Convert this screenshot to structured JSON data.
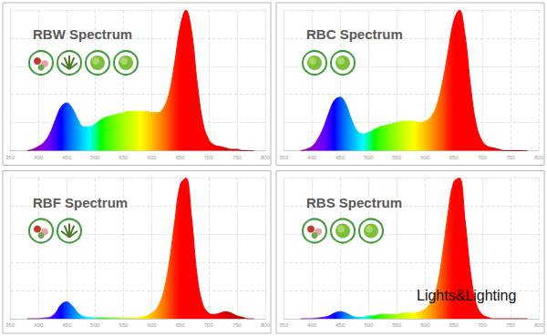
{
  "chart_data": [
    {
      "type": "line",
      "title": "RBW Spectrum",
      "x": [
        380,
        390,
        400,
        410,
        420,
        430,
        440,
        450,
        460,
        470,
        480,
        490,
        500,
        510,
        520,
        530,
        540,
        550,
        560,
        570,
        580,
        590,
        600,
        610,
        620,
        630,
        640,
        650,
        660,
        670,
        680,
        690,
        700,
        710,
        720,
        730,
        740,
        750,
        760,
        770,
        780
      ],
      "values": [
        0,
        1,
        3,
        6,
        12,
        22,
        31,
        34,
        30,
        22,
        17,
        17,
        19,
        22,
        24,
        25,
        26,
        27,
        28,
        28,
        28,
        28,
        27,
        27,
        30,
        40,
        62,
        88,
        100,
        85,
        48,
        20,
        8,
        4,
        3,
        2,
        1,
        1,
        0,
        0,
        0
      ],
      "xlim": [
        350,
        800
      ],
      "xticks": [
        350,
        400,
        450,
        500,
        550,
        600,
        650,
        700,
        750,
        800
      ],
      "ylim": [
        0,
        100
      ],
      "yticks": [
        0,
        20,
        40,
        60,
        80,
        100
      ],
      "grid": true,
      "tick_labels": "x"
    },
    {
      "type": "line",
      "title": "RBC Spectrum",
      "x": [
        380,
        390,
        400,
        410,
        420,
        430,
        440,
        450,
        460,
        470,
        480,
        490,
        500,
        510,
        520,
        530,
        540,
        550,
        560,
        570,
        580,
        590,
        600,
        610,
        620,
        630,
        640,
        650,
        660,
        670,
        680,
        690,
        700,
        710,
        720,
        730,
        740,
        750,
        760,
        770,
        780
      ],
      "values": [
        0,
        1,
        3,
        8,
        16,
        27,
        36,
        38,
        33,
        22,
        14,
        12,
        13,
        15,
        17,
        18,
        19,
        20,
        21,
        21,
        21,
        20,
        21,
        24,
        32,
        48,
        70,
        92,
        100,
        82,
        45,
        18,
        7,
        3,
        2,
        1,
        0,
        0,
        0,
        0,
        0
      ],
      "xlim": [
        350,
        800
      ],
      "xticks": [
        350,
        400,
        450,
        500,
        550,
        600,
        650,
        700,
        750,
        800
      ],
      "ylim": [
        0,
        100
      ],
      "yticks": [
        0,
        20,
        40,
        60,
        80,
        100
      ],
      "grid": true,
      "tick_labels": "x"
    },
    {
      "type": "line",
      "title": "RBF Spectrum",
      "x": [
        380,
        390,
        400,
        410,
        420,
        430,
        440,
        450,
        460,
        470,
        480,
        490,
        500,
        510,
        520,
        530,
        540,
        550,
        560,
        570,
        580,
        590,
        600,
        610,
        620,
        630,
        640,
        650,
        660,
        670,
        680,
        690,
        700,
        710,
        720,
        730,
        740,
        750,
        760,
        770,
        780
      ],
      "values": [
        0,
        0,
        0,
        0.5,
        1,
        4,
        10,
        12,
        9,
        4,
        1.5,
        1,
        0.5,
        0.5,
        0.5,
        0.5,
        0.5,
        0.5,
        0.5,
        0.5,
        1,
        2,
        4,
        8,
        18,
        38,
        68,
        95,
        100,
        72,
        30,
        10,
        4,
        3,
        4,
        5,
        4,
        2,
        1,
        0,
        0
      ],
      "xlim": [
        350,
        800
      ],
      "xticks": [
        350,
        400,
        450,
        500,
        550,
        600,
        650,
        700,
        750,
        800
      ],
      "ylim": [
        0,
        100
      ],
      "yticks": [
        0,
        20,
        40,
        60,
        80,
        100
      ],
      "grid": true,
      "tick_labels": "x"
    },
    {
      "type": "line",
      "title": "RBS Spectrum",
      "annotations": [
        "Lights&Lighting"
      ],
      "x": [
        380,
        390,
        400,
        410,
        420,
        430,
        440,
        450,
        460,
        470,
        480,
        490,
        500,
        510,
        520,
        530,
        540,
        550,
        560,
        570,
        580,
        590,
        600,
        610,
        620,
        630,
        640,
        650,
        660,
        670,
        680,
        690,
        700,
        710,
        720,
        730,
        740,
        750,
        760,
        770,
        780
      ],
      "values": [
        0,
        0,
        0,
        0.5,
        1,
        2,
        4,
        5,
        4,
        2,
        1,
        1,
        2,
        2,
        3,
        3,
        3,
        3,
        4,
        4,
        4,
        5,
        7,
        12,
        22,
        45,
        75,
        97,
        100,
        70,
        32,
        10,
        3,
        1,
        0,
        0,
        0,
        0,
        0,
        0,
        0
      ],
      "xlim": [
        350,
        800
      ],
      "xticks": [
        350,
        400,
        450,
        500,
        550,
        600,
        650,
        700,
        750,
        800
      ],
      "ylim": [
        0,
        100
      ],
      "yticks": [
        0,
        20,
        40,
        60,
        80,
        100
      ],
      "grid": true,
      "tick_labels": "x"
    }
  ]
}
